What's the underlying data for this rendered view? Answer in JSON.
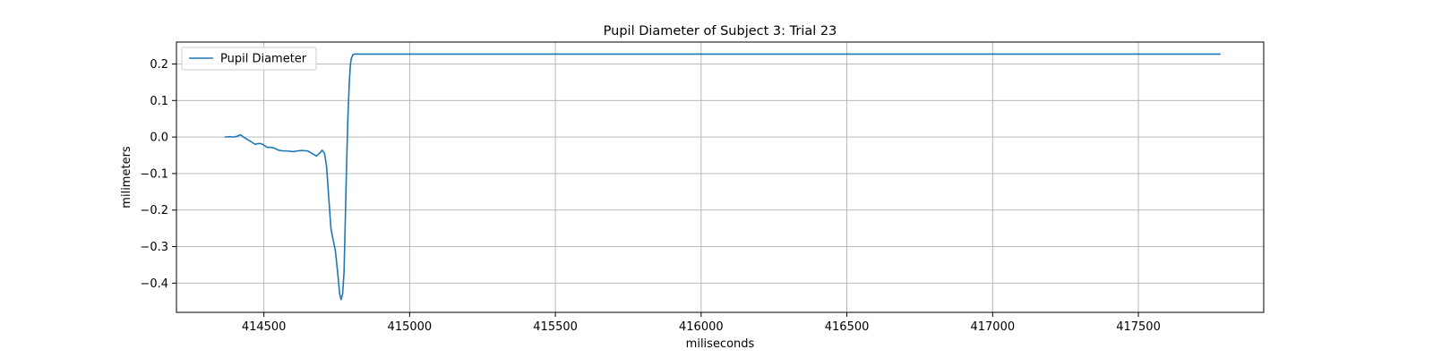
{
  "chart_data": {
    "type": "line",
    "title": "Pupil Diameter of Subject 3: Trial 23",
    "xlabel": "miliseconds",
    "ylabel": "milimeters",
    "xlim": [
      414200,
      417930
    ],
    "ylim": [
      -0.48,
      0.26
    ],
    "xticks": [
      414500,
      415000,
      415500,
      416000,
      416500,
      417000,
      417500
    ],
    "yticks": [
      0.2,
      0.1,
      0.0,
      -0.1,
      -0.2,
      -0.3,
      -0.4
    ],
    "xtick_labels": [
      "414500",
      "415000",
      "415500",
      "416000",
      "416500",
      "417000",
      "417500"
    ],
    "ytick_labels": [
      "0.2",
      "0.1",
      "0.0",
      "−0.1",
      "−0.2",
      "−0.3",
      "−0.4"
    ],
    "grid": true,
    "legend": {
      "position": "upper-left",
      "entries": [
        "Pupil Diameter"
      ]
    },
    "series": [
      {
        "name": "Pupil Diameter",
        "color": "#1f77b4",
        "x": [
          414367,
          414380,
          414395,
          414408,
          414420,
          414430,
          414440,
          414455,
          414470,
          414480,
          414490,
          414500,
          414510,
          414522,
          414535,
          414550,
          414565,
          414580,
          414600,
          414615,
          414630,
          414650,
          414665,
          414680,
          414693,
          414700,
          414708,
          414715,
          414722,
          414730,
          414737,
          414745,
          414753,
          414760,
          414765,
          414770,
          414775,
          414778,
          414783,
          414788,
          414793,
          414797,
          414800,
          414805,
          414810,
          414815,
          414822,
          414830,
          414850,
          415000,
          415500,
          416000,
          416500,
          417000,
          417500,
          417780
        ],
        "y": [
          0.0,
          0.001,
          0.0,
          0.002,
          0.006,
          0.0,
          -0.005,
          -0.012,
          -0.02,
          -0.018,
          -0.018,
          -0.022,
          -0.028,
          -0.028,
          -0.03,
          -0.036,
          -0.038,
          -0.038,
          -0.04,
          -0.038,
          -0.037,
          -0.038,
          -0.045,
          -0.052,
          -0.043,
          -0.036,
          -0.045,
          -0.08,
          -0.16,
          -0.25,
          -0.28,
          -0.31,
          -0.37,
          -0.43,
          -0.445,
          -0.43,
          -0.37,
          -0.27,
          -0.1,
          0.05,
          0.15,
          0.2,
          0.215,
          0.225,
          0.227,
          0.227,
          0.227,
          0.227,
          0.227,
          0.227,
          0.227,
          0.227,
          0.227,
          0.227,
          0.227,
          0.227
        ]
      }
    ]
  }
}
